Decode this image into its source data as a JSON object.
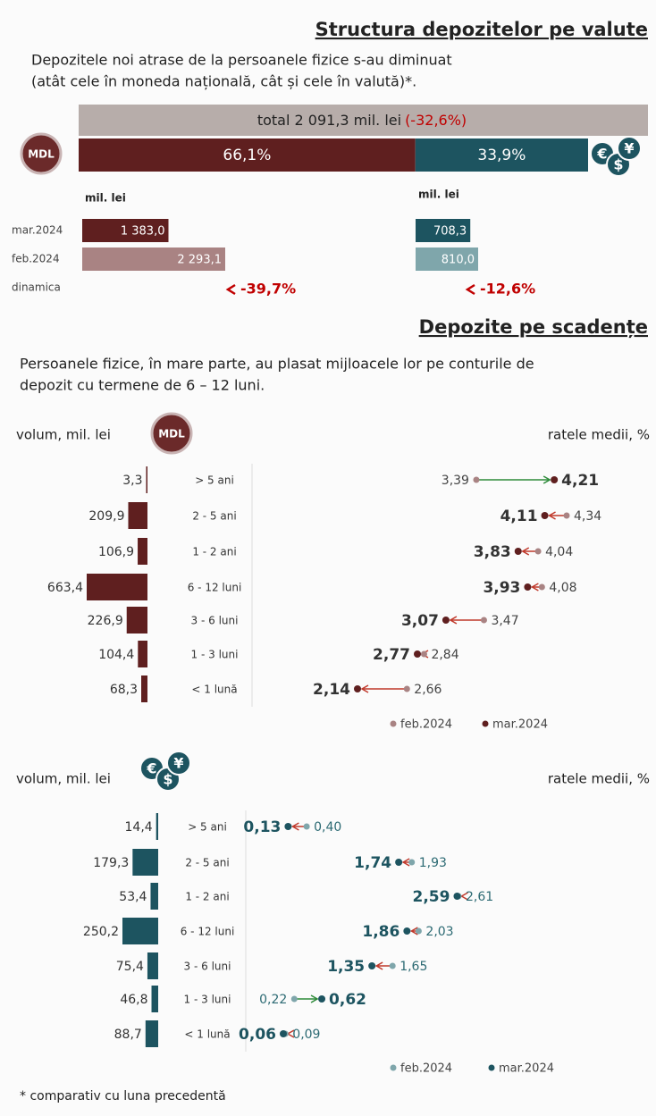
{
  "structure": {
    "title": "Structura depozitelor pe valute",
    "subtitle": [
      "Depozitele noi atrase de la persoanele fizice s-au diminuat",
      "(atât cele în moneda națională, cât și cele în valută)*."
    ],
    "total": {
      "value": 2091.3,
      "label": "total 2 091,3 mil. lei",
      "change": -32.6,
      "change_label": "(-32,6%)"
    },
    "shares": {
      "values": [
        66.1,
        33.9
      ],
      "value_labels": [
        "66,1%",
        "33,9%"
      ],
      "colors": [
        "#5f1f1f",
        "#1d5460"
      ]
    },
    "mdl_badge": "MDL",
    "fx_symbols": [
      "€",
      "$",
      "¥"
    ],
    "unit": "mil. lei",
    "rows": [
      "mar.2024",
      "feb.2024",
      "dinamica"
    ],
    "mdl": {
      "values": [
        1383.0,
        2293.1
      ],
      "value_labels": [
        "1 383,0",
        "2 293,1"
      ],
      "colors": [
        "#5f1f1f",
        "#a98383"
      ],
      "change": -39.7,
      "change_label": "-39,7%"
    },
    "fx": {
      "values": [
        708.3,
        810.0
      ],
      "value_labels": [
        "708,3",
        "810,0"
      ],
      "colors": [
        "#1d5460",
        "#7fa6ab"
      ],
      "change": -12.6,
      "change_label": "-12,6%"
    }
  },
  "maturity": {
    "title": "Depozite pe scadențe",
    "subtitle": [
      "Persoanele fizice, în mare parte, au plasat mijloacele lor pe conturile de",
      "depozit cu termene de 6 – 12 luni."
    ],
    "volume_title": "volum, mil. lei",
    "rate_title": "ratele medii, %"
  },
  "chart_data": [
    {
      "type": "bar",
      "color": "#5f1f1f",
      "categories": [
        "> 5 ani",
        "2 - 5 ani",
        "1 - 2 ani",
        "6 - 12 luni",
        "3 - 6 luni",
        "1 - 3 luni",
        "< 1 lună"
      ],
      "values": [
        3.3,
        209.9,
        106.9,
        663.4,
        226.9,
        104.4,
        68.3
      ],
      "value_labels": [
        "3,3",
        "209,9",
        "106,9",
        "663,4",
        "226,9",
        "104,4",
        "68,3"
      ],
      "series": [
        {
          "name": "feb.2024",
          "color": "#a98383",
          "values": [
            3.39,
            4.34,
            4.04,
            4.08,
            3.47,
            2.84,
            2.66
          ],
          "value_labels": [
            "3,39",
            "4,34",
            "4,04",
            "4,08",
            "3,47",
            "2,84",
            "2,66"
          ]
        },
        {
          "name": "mar.2024",
          "color": "#5f1f1f",
          "values": [
            4.21,
            4.11,
            3.83,
            3.93,
            3.07,
            2.77,
            2.14
          ],
          "value_labels": [
            "4,21",
            "4,11",
            "3,83",
            "3,93",
            "3,07",
            "2,77",
            "2,14"
          ]
        }
      ]
    },
    {
      "type": "bar",
      "color": "#1d5460",
      "categories": [
        "> 5 ani",
        "2 - 5 ani",
        "1 - 2 ani",
        "6 - 12 luni",
        "3 - 6 luni",
        "1 - 3 luni",
        "< 1 lună"
      ],
      "values": [
        14.4,
        179.3,
        53.4,
        250.2,
        75.4,
        46.8,
        88.7
      ],
      "value_labels": [
        "14,4",
        "179,3",
        "53,4",
        "250,2",
        "75,4",
        "46,8",
        "88,7"
      ],
      "series": [
        {
          "name": "feb.2024",
          "color": "#7fa6ab",
          "values": [
            0.4,
            1.93,
            2.61,
            2.03,
            1.65,
            0.22,
            0.09
          ],
          "value_labels": [
            "0,40",
            "1,93",
            "2,61",
            "2,03",
            "1,65",
            "0,22",
            "0,09"
          ]
        },
        {
          "name": "mar.2024",
          "color": "#1d5460",
          "values": [
            0.13,
            1.74,
            2.59,
            1.86,
            1.35,
            0.62,
            0.06
          ],
          "value_labels": [
            "0,13",
            "1,74",
            "2,59",
            "1,86",
            "1,35",
            "0,62",
            "0,06"
          ]
        }
      ]
    }
  ],
  "footnote": "* comparativ cu luna precedentă"
}
